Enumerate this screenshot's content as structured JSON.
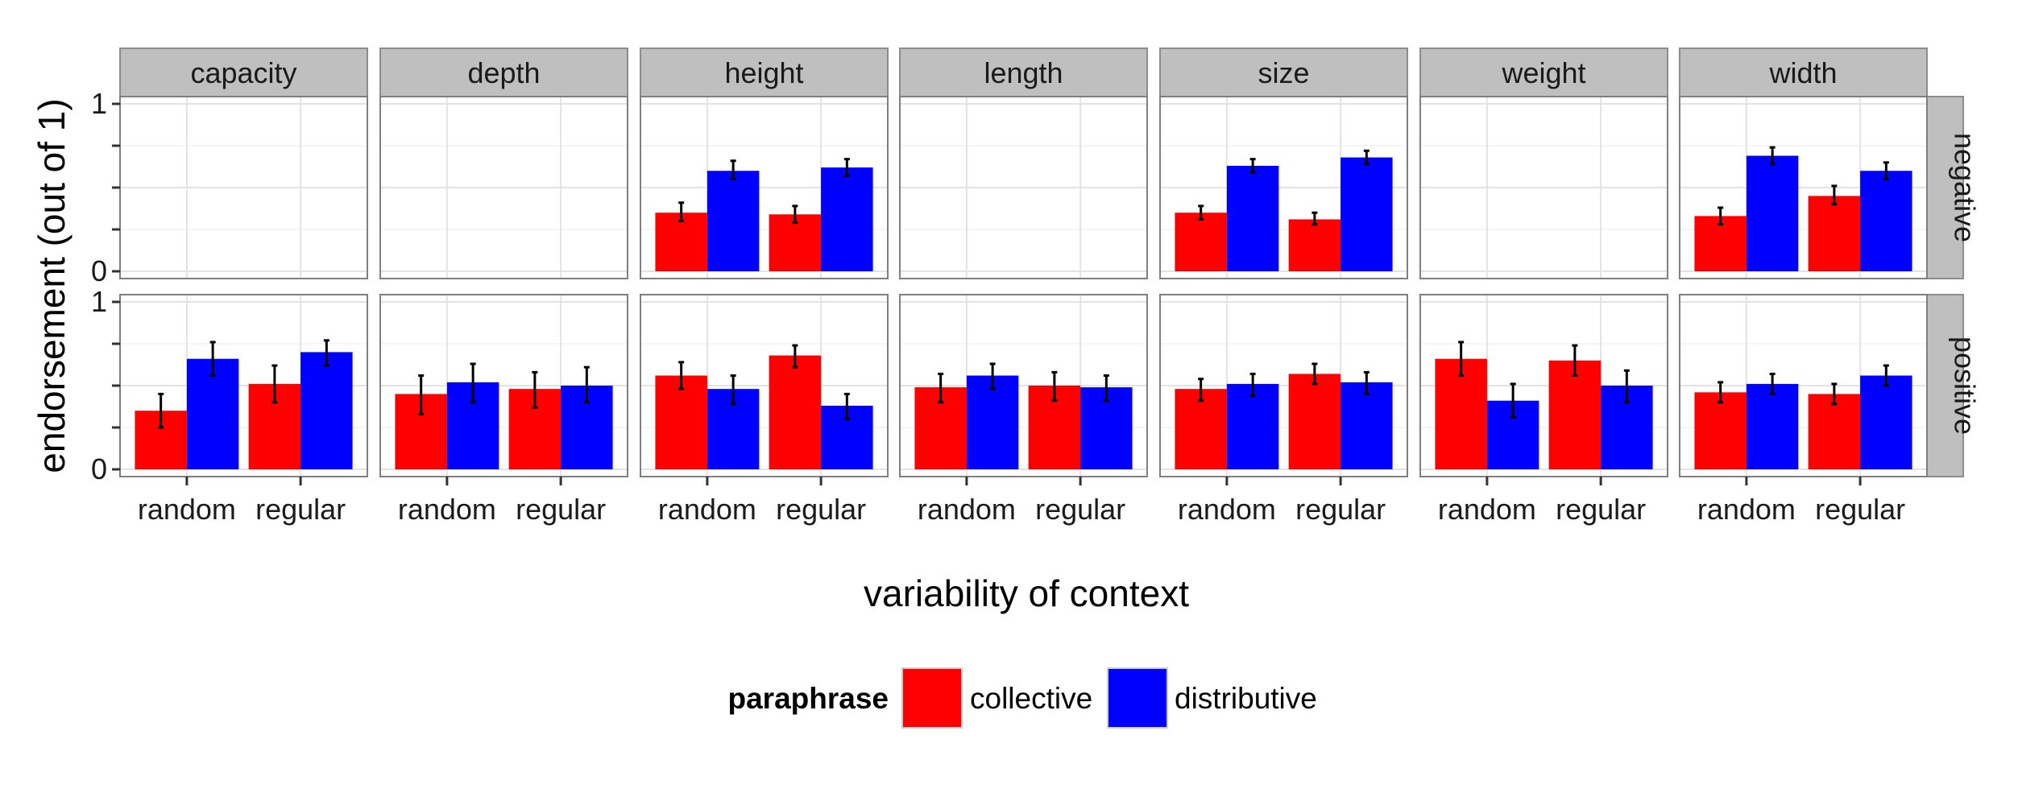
{
  "chart_data": {
    "type": "bar",
    "xlabel": "variability of context",
    "ylabel": "endorsement (out of 1)",
    "ylim": [
      0,
      1
    ],
    "y_ticks": [
      0,
      1
    ],
    "y_tick_labels": [
      "0",
      "1"
    ],
    "grid": true,
    "categories": [
      "random",
      "regular"
    ],
    "facet_columns": [
      "capacity",
      "depth",
      "height",
      "length",
      "size",
      "weight",
      "width"
    ],
    "facet_rows": [
      "negative",
      "positive"
    ],
    "legend": {
      "title": "paraphrase",
      "position": "bottom",
      "entries": [
        {
          "name": "collective",
          "color": "#ff0000"
        },
        {
          "name": "distributive",
          "color": "#0000ff"
        }
      ]
    },
    "series": [
      {
        "name": "collective",
        "color": "#ff0000"
      },
      {
        "name": "distributive",
        "color": "#0000ff"
      }
    ],
    "panels": [
      {
        "column": "capacity",
        "row": "negative",
        "bars": []
      },
      {
        "column": "depth",
        "row": "negative",
        "bars": []
      },
      {
        "column": "height",
        "row": "negative",
        "bars": [
          {
            "category": "random",
            "series": "collective",
            "value": 0.35,
            "err_low": 0.3,
            "err_high": 0.41
          },
          {
            "category": "random",
            "series": "distributive",
            "value": 0.6,
            "err_low": 0.55,
            "err_high": 0.66
          },
          {
            "category": "regular",
            "series": "collective",
            "value": 0.34,
            "err_low": 0.29,
            "err_high": 0.39
          },
          {
            "category": "regular",
            "series": "distributive",
            "value": 0.62,
            "err_low": 0.57,
            "err_high": 0.67
          }
        ]
      },
      {
        "column": "length",
        "row": "negative",
        "bars": []
      },
      {
        "column": "size",
        "row": "negative",
        "bars": [
          {
            "category": "random",
            "series": "collective",
            "value": 0.35,
            "err_low": 0.31,
            "err_high": 0.39
          },
          {
            "category": "random",
            "series": "distributive",
            "value": 0.63,
            "err_low": 0.59,
            "err_high": 0.67
          },
          {
            "category": "regular",
            "series": "collective",
            "value": 0.31,
            "err_low": 0.28,
            "err_high": 0.35
          },
          {
            "category": "regular",
            "series": "distributive",
            "value": 0.68,
            "err_low": 0.64,
            "err_high": 0.72
          }
        ]
      },
      {
        "column": "weight",
        "row": "negative",
        "bars": []
      },
      {
        "column": "width",
        "row": "negative",
        "bars": [
          {
            "category": "random",
            "series": "collective",
            "value": 0.33,
            "err_low": 0.28,
            "err_high": 0.38
          },
          {
            "category": "random",
            "series": "distributive",
            "value": 0.69,
            "err_low": 0.64,
            "err_high": 0.74
          },
          {
            "category": "regular",
            "series": "collective",
            "value": 0.45,
            "err_low": 0.4,
            "err_high": 0.51
          },
          {
            "category": "regular",
            "series": "distributive",
            "value": 0.6,
            "err_low": 0.55,
            "err_high": 0.65
          }
        ]
      },
      {
        "column": "capacity",
        "row": "positive",
        "bars": [
          {
            "category": "random",
            "series": "collective",
            "value": 0.35,
            "err_low": 0.25,
            "err_high": 0.45
          },
          {
            "category": "random",
            "series": "distributive",
            "value": 0.66,
            "err_low": 0.56,
            "err_high": 0.76
          },
          {
            "category": "regular",
            "series": "collective",
            "value": 0.51,
            "err_low": 0.4,
            "err_high": 0.62
          },
          {
            "category": "regular",
            "series": "distributive",
            "value": 0.7,
            "err_low": 0.62,
            "err_high": 0.77
          }
        ]
      },
      {
        "column": "depth",
        "row": "positive",
        "bars": [
          {
            "category": "random",
            "series": "collective",
            "value": 0.45,
            "err_low": 0.33,
            "err_high": 0.56
          },
          {
            "category": "random",
            "series": "distributive",
            "value": 0.52,
            "err_low": 0.4,
            "err_high": 0.63
          },
          {
            "category": "regular",
            "series": "collective",
            "value": 0.48,
            "err_low": 0.37,
            "err_high": 0.58
          },
          {
            "category": "regular",
            "series": "distributive",
            "value": 0.5,
            "err_low": 0.4,
            "err_high": 0.61
          }
        ]
      },
      {
        "column": "height",
        "row": "positive",
        "bars": [
          {
            "category": "random",
            "series": "collective",
            "value": 0.56,
            "err_low": 0.48,
            "err_high": 0.64
          },
          {
            "category": "random",
            "series": "distributive",
            "value": 0.48,
            "err_low": 0.39,
            "err_high": 0.56
          },
          {
            "category": "regular",
            "series": "collective",
            "value": 0.68,
            "err_low": 0.61,
            "err_high": 0.74
          },
          {
            "category": "regular",
            "series": "distributive",
            "value": 0.38,
            "err_low": 0.3,
            "err_high": 0.45
          }
        ]
      },
      {
        "column": "length",
        "row": "positive",
        "bars": [
          {
            "category": "random",
            "series": "collective",
            "value": 0.49,
            "err_low": 0.4,
            "err_high": 0.57
          },
          {
            "category": "random",
            "series": "distributive",
            "value": 0.56,
            "err_low": 0.48,
            "err_high": 0.63
          },
          {
            "category": "regular",
            "series": "collective",
            "value": 0.5,
            "err_low": 0.41,
            "err_high": 0.58
          },
          {
            "category": "regular",
            "series": "distributive",
            "value": 0.49,
            "err_low": 0.41,
            "err_high": 0.56
          }
        ]
      },
      {
        "column": "size",
        "row": "positive",
        "bars": [
          {
            "category": "random",
            "series": "collective",
            "value": 0.48,
            "err_low": 0.41,
            "err_high": 0.54
          },
          {
            "category": "random",
            "series": "distributive",
            "value": 0.51,
            "err_low": 0.44,
            "err_high": 0.57
          },
          {
            "category": "regular",
            "series": "collective",
            "value": 0.57,
            "err_low": 0.51,
            "err_high": 0.63
          },
          {
            "category": "regular",
            "series": "distributive",
            "value": 0.52,
            "err_low": 0.45,
            "err_high": 0.58
          }
        ]
      },
      {
        "column": "weight",
        "row": "positive",
        "bars": [
          {
            "category": "random",
            "series": "collective",
            "value": 0.66,
            "err_low": 0.56,
            "err_high": 0.76
          },
          {
            "category": "random",
            "series": "distributive",
            "value": 0.41,
            "err_low": 0.31,
            "err_high": 0.51
          },
          {
            "category": "regular",
            "series": "collective",
            "value": 0.65,
            "err_low": 0.56,
            "err_high": 0.74
          },
          {
            "category": "regular",
            "series": "distributive",
            "value": 0.5,
            "err_low": 0.4,
            "err_high": 0.59
          }
        ]
      },
      {
        "column": "width",
        "row": "positive",
        "bars": [
          {
            "category": "random",
            "series": "collective",
            "value": 0.46,
            "err_low": 0.4,
            "err_high": 0.52
          },
          {
            "category": "random",
            "series": "distributive",
            "value": 0.51,
            "err_low": 0.45,
            "err_high": 0.57
          },
          {
            "category": "regular",
            "series": "collective",
            "value": 0.45,
            "err_low": 0.39,
            "err_high": 0.51
          },
          {
            "category": "regular",
            "series": "distributive",
            "value": 0.56,
            "err_low": 0.5,
            "err_high": 0.62
          }
        ]
      }
    ]
  }
}
